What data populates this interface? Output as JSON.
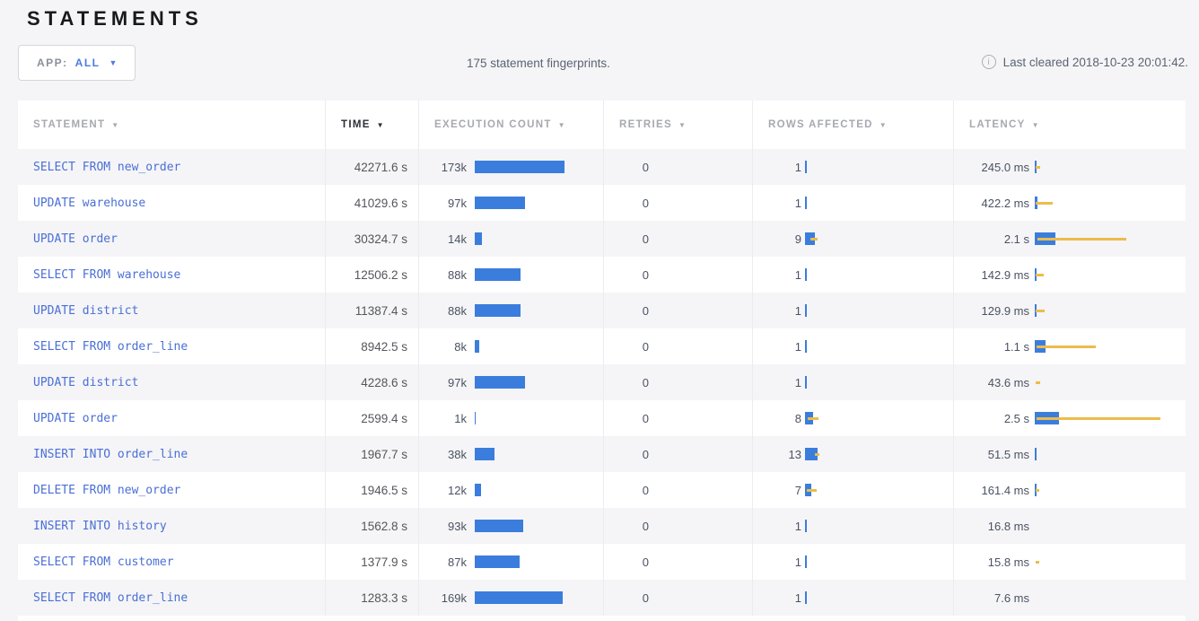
{
  "page": {
    "title": "STATEMENTS",
    "app_filter": {
      "label": "APP:",
      "value": "ALL"
    },
    "summary": "175 statement fingerprints.",
    "last_cleared": "Last cleared 2018-10-23 20:01:42."
  },
  "icons": {
    "sort_caret": "▼",
    "dropdown_caret": "▼",
    "info": "i"
  },
  "colors": {
    "bar_blue": "#3b7ddd",
    "bar_yellow": "#ecbc4b",
    "link_blue": "#4a6fd6",
    "accent_blue": "#4c7be0"
  },
  "table": {
    "columns": [
      {
        "label": "STATEMENT",
        "sorted": false
      },
      {
        "label": "TIME",
        "sorted": true
      },
      {
        "label": "EXECUTION COUNT",
        "sorted": false
      },
      {
        "label": "RETRIES",
        "sorted": false
      },
      {
        "label": "ROWS AFFECTED",
        "sorted": false
      },
      {
        "label": "LATENCY",
        "sorted": false
      }
    ],
    "rows": [
      {
        "statement": "SELECT FROM new_order",
        "time": "42271.6 s",
        "execution_count": "173k",
        "count_bar": 100,
        "retries": "0",
        "rows_affected": "1",
        "rows_bar": [
          2,
          0,
          0
        ],
        "latency": "245.0 ms",
        "latency_bar": [
          2,
          1,
          5
        ]
      },
      {
        "statement": "UPDATE warehouse",
        "time": "41029.6 s",
        "execution_count": "97k",
        "count_bar": 56,
        "retries": "0",
        "rows_affected": "1",
        "rows_bar": [
          2,
          0,
          0
        ],
        "latency": "422.2 ms",
        "latency_bar": [
          3,
          1,
          19
        ]
      },
      {
        "statement": "UPDATE order",
        "time": "30324.7 s",
        "execution_count": "14k",
        "count_bar": 8,
        "retries": "0",
        "rows_affected": "9",
        "rows_bar": [
          11,
          6,
          8
        ],
        "latency": "2.1 s",
        "latency_bar": [
          23,
          3,
          99
        ]
      },
      {
        "statement": "SELECT FROM warehouse",
        "time": "12506.2 s",
        "execution_count": "88k",
        "count_bar": 51,
        "retries": "0",
        "rows_affected": "1",
        "rows_bar": [
          2,
          0,
          0
        ],
        "latency": "142.9 ms",
        "latency_bar": [
          2,
          1,
          9
        ]
      },
      {
        "statement": "UPDATE district",
        "time": "11387.4 s",
        "execution_count": "88k",
        "count_bar": 51,
        "retries": "0",
        "rows_affected": "1",
        "rows_bar": [
          2,
          0,
          0
        ],
        "latency": "129.9 ms",
        "latency_bar": [
          2,
          1,
          10
        ]
      },
      {
        "statement": "SELECT FROM order_line",
        "time": "8942.5 s",
        "execution_count": "8k",
        "count_bar": 5,
        "retries": "0",
        "rows_affected": "1",
        "rows_bar": [
          2,
          0,
          0
        ],
        "latency": "1.1 s",
        "latency_bar": [
          12,
          2,
          66
        ]
      },
      {
        "statement": "UPDATE district",
        "time": "4228.6 s",
        "execution_count": "97k",
        "count_bar": 56,
        "retries": "0",
        "rows_affected": "1",
        "rows_bar": [
          2,
          0,
          0
        ],
        "latency": "43.6 ms",
        "latency_bar": [
          0,
          1,
          5
        ]
      },
      {
        "statement": "UPDATE order",
        "time": "2599.4 s",
        "execution_count": "1k",
        "count_bar": 1,
        "retries": "0",
        "rows_affected": "8",
        "rows_bar": [
          9,
          3,
          12
        ],
        "latency": "2.5 s",
        "latency_bar": [
          27,
          2,
          138
        ]
      },
      {
        "statement": "INSERT INTO order_line",
        "time": "1967.7 s",
        "execution_count": "38k",
        "count_bar": 22,
        "retries": "0",
        "rows_affected": "13",
        "rows_bar": [
          14,
          11,
          5
        ],
        "latency": "51.5 ms",
        "latency_bar": [
          2,
          0,
          0
        ]
      },
      {
        "statement": "DELETE FROM new_order",
        "time": "1946.5 s",
        "execution_count": "12k",
        "count_bar": 7,
        "retries": "0",
        "rows_affected": "7",
        "rows_bar": [
          7,
          2,
          11
        ],
        "latency": "161.4 ms",
        "latency_bar": [
          2,
          1,
          4
        ]
      },
      {
        "statement": "INSERT INTO history",
        "time": "1562.8 s",
        "execution_count": "93k",
        "count_bar": 54,
        "retries": "0",
        "rows_affected": "1",
        "rows_bar": [
          2,
          0,
          0
        ],
        "latency": "16.8 ms",
        "latency_bar": [
          0,
          0,
          0
        ]
      },
      {
        "statement": "SELECT FROM customer",
        "time": "1377.9 s",
        "execution_count": "87k",
        "count_bar": 50,
        "retries": "0",
        "rows_affected": "1",
        "rows_bar": [
          2,
          0,
          0
        ],
        "latency": "15.8 ms",
        "latency_bar": [
          0,
          1,
          4
        ]
      },
      {
        "statement": "SELECT FROM order_line",
        "time": "1283.3 s",
        "execution_count": "169k",
        "count_bar": 98,
        "retries": "0",
        "rows_affected": "1",
        "rows_bar": [
          2,
          0,
          0
        ],
        "latency": "7.6 ms",
        "latency_bar": [
          0,
          0,
          0
        ]
      }
    ]
  }
}
